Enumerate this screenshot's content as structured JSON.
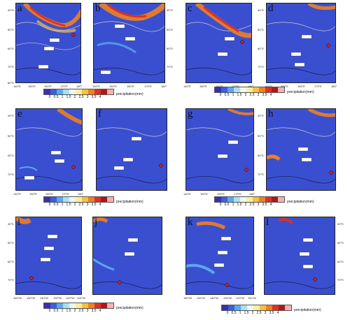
{
  "panels": [
    {
      "letter": "a",
      "lats": [
        "40°S",
        "50°S",
        "60°S",
        "70°S",
        "80°S"
      ],
      "lons": [
        "140°E",
        "150°E",
        "160°E",
        "170°E",
        "180°"
      ]
    },
    {
      "letter": "b",
      "lats": [
        "40°S",
        "50°S",
        "60°S",
        "70°S",
        "80°S"
      ],
      "lons": [
        "140°E",
        "150°E",
        "160°E",
        "170°E",
        "180°"
      ]
    },
    {
      "letter": "c",
      "lats": [
        "40°S",
        "50°S",
        "60°S",
        "70°S",
        "80°S"
      ],
      "lons": [
        "140°E",
        "150°E",
        "160°E",
        "170°E",
        "180°"
      ]
    },
    {
      "letter": "d",
      "lats": [
        "40°S",
        "50°S",
        "60°S",
        "70°S",
        "80°S"
      ],
      "lons": [
        "140°E",
        "150°E",
        "160°E",
        "170°E",
        "180°"
      ]
    },
    {
      "letter": "e",
      "lats": [
        "40°S",
        "50°S",
        "60°S",
        "70°S",
        "80°S"
      ],
      "lons": [
        "140°E",
        "150°E",
        "160°E",
        "170°E",
        "180°"
      ]
    },
    {
      "letter": "f",
      "lats": [
        "40°S",
        "50°S",
        "60°S",
        "70°S",
        "80°S"
      ],
      "lons": [
        "140°E",
        "150°E",
        "160°E",
        "170°E",
        "180°"
      ]
    },
    {
      "letter": "g",
      "lats": [
        "40°S",
        "50°S",
        "60°S",
        "70°S",
        "80°S"
      ],
      "lons": [
        "140°E",
        "150°E",
        "160°E",
        "170°E",
        "180°"
      ]
    },
    {
      "letter": "h",
      "lats": [
        "40°S",
        "50°S",
        "60°S",
        "70°S",
        "80°S"
      ],
      "lons": [
        "140°E",
        "150°E",
        "160°E",
        "170°E",
        "180°"
      ]
    },
    {
      "letter": "i",
      "lats": [
        "40°S",
        "50°S",
        "60°S",
        "70°S",
        "80°S"
      ],
      "lons": [
        "160°W",
        "150°W",
        "140°W",
        "130°W",
        "120°W",
        "110°W"
      ]
    },
    {
      "letter": "j",
      "lats": [
        "40°S",
        "50°S",
        "60°S",
        "70°S",
        "80°S"
      ],
      "lons": [
        "160°W",
        "150°W",
        "140°W",
        "130°W",
        "120°W",
        "110°W"
      ]
    },
    {
      "letter": "k",
      "lats": [
        "40°S",
        "50°S",
        "60°S",
        "70°S",
        "80°S"
      ],
      "lons": [
        "160°W",
        "150°W",
        "140°W",
        "130°W",
        "120°W",
        "110°W"
      ]
    },
    {
      "letter": "l",
      "lats": [
        "40°S",
        "50°S",
        "60°S",
        "70°S",
        "80°S"
      ],
      "lons": [
        "160°W",
        "150°W",
        "140°W",
        "130°W",
        "120°W",
        "110°W"
      ]
    }
  ],
  "colorbar": {
    "ticks": [
      "0",
      "0.5",
      "1",
      "1.5",
      "2",
      "2.5",
      "3",
      "3.5",
      "4"
    ],
    "unit": "precipitation(mm)",
    "colors": [
      "#3a2fb0",
      "#3a5fe0",
      "#5aa8f0",
      "#a8e0f0",
      "#f0f8f0",
      "#f8f0a0",
      "#f8c040",
      "#f08020",
      "#e03020",
      "#b01818",
      "#f8b0b0"
    ]
  }
}
